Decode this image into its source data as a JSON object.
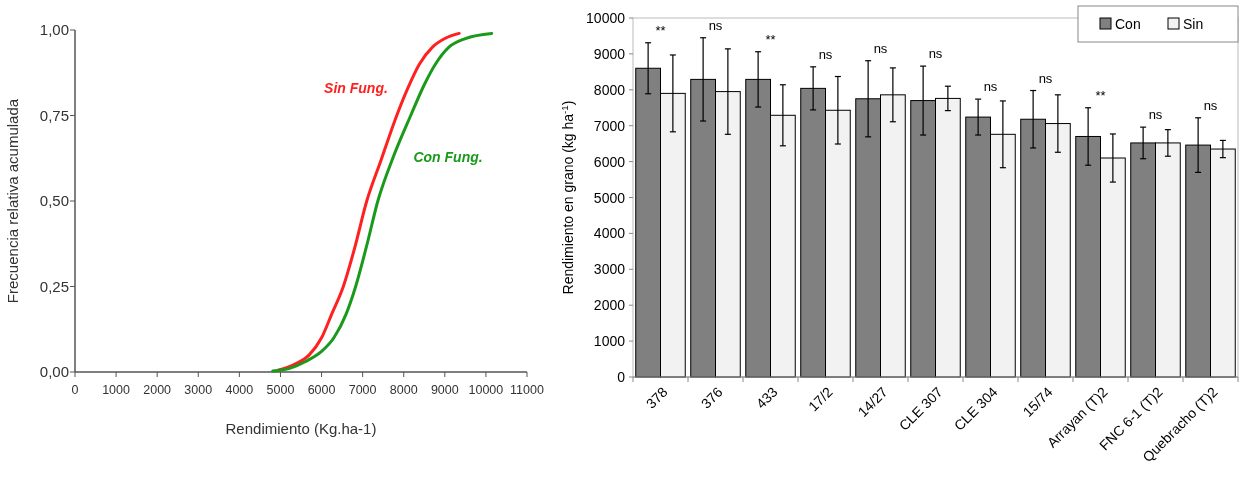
{
  "chart_data": [
    {
      "type": "line",
      "xlabel": "Rendimiento (Kg.ha-1)",
      "ylabel": "Frecuencia relativa acumulada",
      "xlim": [
        0,
        11000
      ],
      "xticks": [
        0,
        1000,
        2000,
        3000,
        4000,
        5000,
        6000,
        7000,
        8000,
        9000,
        10000,
        11000
      ],
      "ylim": [
        0,
        1
      ],
      "yticks": [
        {
          "value": 0,
          "label": "0,00"
        },
        {
          "value": 0.25,
          "label": "0,25"
        },
        {
          "value": 0.5,
          "label": "0,50"
        },
        {
          "value": 0.75,
          "label": "0,75"
        },
        {
          "value": 1,
          "label": "1,00"
        }
      ],
      "grid": false,
      "legend": false,
      "marker": "none",
      "line_style": "solid",
      "series": [
        {
          "name": "Sin Fung.",
          "color": "#ff2020",
          "x": [
            4940,
            5300,
            5700,
            6000,
            6250,
            6530,
            6800,
            7100,
            7450,
            7830,
            8100,
            8380,
            8700,
            9000,
            9350
          ],
          "values": [
            0.005,
            0.02,
            0.05,
            0.1,
            0.17,
            0.25,
            0.36,
            0.5,
            0.62,
            0.75,
            0.83,
            0.9,
            0.95,
            0.975,
            0.99
          ]
        },
        {
          "name": "Con Fung.",
          "color": "#1a9a1a",
          "x": [
            4810,
            5200,
            5600,
            6000,
            6300,
            6600,
            6830,
            7100,
            7370,
            7750,
            8170,
            8500,
            8770,
            9100,
            9500,
            10140
          ],
          "values": [
            0.003,
            0.01,
            0.03,
            0.06,
            0.1,
            0.17,
            0.25,
            0.37,
            0.5,
            0.63,
            0.75,
            0.84,
            0.9,
            0.95,
            0.975,
            0.99
          ]
        }
      ]
    },
    {
      "type": "bar",
      "ylabel": "Rendimiento en grano (kg ha$^{-1}$)",
      "ylim": [
        0,
        10000
      ],
      "yticks": [
        0,
        1000,
        2000,
        3000,
        4000,
        5000,
        6000,
        7000,
        8000,
        9000,
        10000
      ],
      "grid": false,
      "legend": "top right",
      "categories": [
        "378",
        "376",
        "433",
        "17/2",
        "14/27",
        "CLE 307",
        "CLE 304",
        "15/74",
        "Arrayan (T)2",
        "FNC 6-1 (T)2",
        "Quebracho (T)2"
      ],
      "series": [
        {
          "name": "Con",
          "color": "#808080",
          "values": [
            8600,
            8290,
            8290,
            8040,
            7750,
            7700,
            7240,
            7180,
            6700,
            6520,
            6460
          ],
          "errors": [
            710,
            1160,
            770,
            600,
            1060,
            960,
            500,
            800,
            800,
            440,
            760
          ]
        },
        {
          "name": "Sin",
          "color": "#f2f2f2",
          "values": [
            7900,
            7950,
            7290,
            7430,
            7860,
            7760,
            6760,
            7060,
            6100,
            6520,
            6350
          ],
          "errors": [
            1070,
            1190,
            850,
            940,
            750,
            340,
            930,
            800,
            670,
            370,
            240
          ]
        }
      ],
      "annotations": [
        "**",
        "ns",
        "**",
        "ns",
        "ns",
        "ns",
        "ns",
        "ns",
        "**",
        "ns",
        "ns"
      ]
    }
  ]
}
